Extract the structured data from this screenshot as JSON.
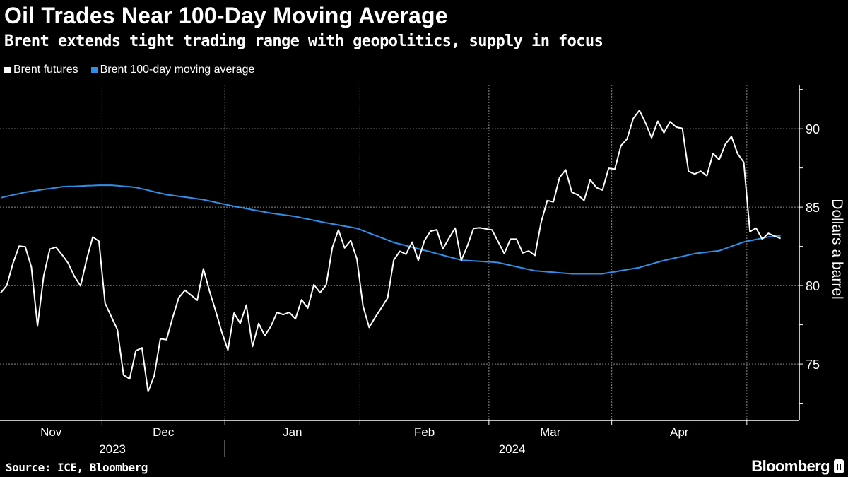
{
  "title": "Oil Trades Near 100-Day Moving Average",
  "subtitle": "Brent extends tight trading range with geopolitics, supply in focus",
  "source": "Source: ICE, Bloomberg",
  "logo_text": "Bloomberg",
  "chart_data": {
    "type": "line",
    "ylabel": "Dollars a barrel",
    "ylim": [
      71.4,
      92.8
    ],
    "yticks": [
      75,
      80,
      85,
      90
    ],
    "y_axis_position": "right",
    "grid": true,
    "legend_placement": "top-left",
    "month_labels": [
      "Nov",
      "Dec",
      "Jan",
      "Feb",
      "Mar",
      "Apr"
    ],
    "year_labels": [
      "2023",
      "2024"
    ],
    "x": [
      "2023-11-08",
      "2023-11-09",
      "2023-11-10",
      "2023-11-13",
      "2023-11-14",
      "2023-11-15",
      "2023-11-16",
      "2023-11-17",
      "2023-11-20",
      "2023-11-21",
      "2023-11-22",
      "2023-11-23",
      "2023-11-24",
      "2023-11-27",
      "2023-11-28",
      "2023-11-29",
      "2023-11-30",
      "2023-12-01",
      "2023-12-04",
      "2023-12-05",
      "2023-12-06",
      "2023-12-07",
      "2023-12-08",
      "2023-12-11",
      "2023-12-12",
      "2023-12-13",
      "2023-12-14",
      "2023-12-15",
      "2023-12-18",
      "2023-12-19",
      "2023-12-20",
      "2023-12-21",
      "2023-12-22",
      "2023-12-26",
      "2023-12-27",
      "2023-12-28",
      "2023-12-29",
      "2024-01-02",
      "2024-01-03",
      "2024-01-04",
      "2024-01-05",
      "2024-01-08",
      "2024-01-09",
      "2024-01-10",
      "2024-01-11",
      "2024-01-12",
      "2024-01-15",
      "2024-01-16",
      "2024-01-17",
      "2024-01-18",
      "2024-01-19",
      "2024-01-22",
      "2024-01-23",
      "2024-01-24",
      "2024-01-25",
      "2024-01-26",
      "2024-01-29",
      "2024-01-30",
      "2024-01-31",
      "2024-02-01",
      "2024-02-02",
      "2024-02-05",
      "2024-02-06",
      "2024-02-07",
      "2024-02-08",
      "2024-02-09",
      "2024-02-12",
      "2024-02-13",
      "2024-02-14",
      "2024-02-15",
      "2024-02-16",
      "2024-02-19",
      "2024-02-20",
      "2024-02-21",
      "2024-02-22",
      "2024-02-23",
      "2024-02-26",
      "2024-02-27",
      "2024-02-28",
      "2024-02-29",
      "2024-03-01",
      "2024-03-04",
      "2024-03-05",
      "2024-03-06",
      "2024-03-07",
      "2024-03-08",
      "2024-03-11",
      "2024-03-12",
      "2024-03-13",
      "2024-03-14",
      "2024-03-15",
      "2024-03-18",
      "2024-03-19",
      "2024-03-20",
      "2024-03-21",
      "2024-03-22",
      "2024-03-25",
      "2024-03-26",
      "2024-03-27",
      "2024-03-28",
      "2024-04-01",
      "2024-04-02",
      "2024-04-03",
      "2024-04-04",
      "2024-04-05",
      "2024-04-08",
      "2024-04-09",
      "2024-04-10",
      "2024-04-11",
      "2024-04-12",
      "2024-04-15",
      "2024-04-16",
      "2024-04-17",
      "2024-04-18",
      "2024-04-19",
      "2024-04-22",
      "2024-04-23",
      "2024-04-24",
      "2024-04-25",
      "2024-04-26",
      "2024-04-29",
      "2024-04-30",
      "2024-05-01",
      "2024-05-02",
      "2024-05-03",
      "2024-05-06",
      "2024-05-07",
      "2024-05-08"
    ],
    "series": [
      {
        "name": "Brent futures",
        "color": "#ffffff",
        "values": [
          79.54,
          80.01,
          81.43,
          82.52,
          82.47,
          81.18,
          77.42,
          80.61,
          82.32,
          82.45,
          81.96,
          81.42,
          80.58,
          79.98,
          81.68,
          83.1,
          82.83,
          78.88,
          78.03,
          77.2,
          74.3,
          74.05,
          75.84,
          76.03,
          73.24,
          74.26,
          76.61,
          76.55,
          77.95,
          79.23,
          79.7,
          79.39,
          79.07,
          81.07,
          79.65,
          78.39,
          77.04,
          75.89,
          78.25,
          77.59,
          78.76,
          76.12,
          77.59,
          76.8,
          77.41,
          78.29,
          78.15,
          78.29,
          77.88,
          79.1,
          78.56,
          80.06,
          79.55,
          80.04,
          82.43,
          83.55,
          82.4,
          82.87,
          81.71,
          78.7,
          77.33,
          77.99,
          78.59,
          79.21,
          81.63,
          82.19,
          82.0,
          82.77,
          81.6,
          82.86,
          83.47,
          83.56,
          82.34,
          83.03,
          83.67,
          81.62,
          82.53,
          83.65,
          83.68,
          83.62,
          83.55,
          82.8,
          82.04,
          82.96,
          82.96,
          82.08,
          82.21,
          81.92,
          84.03,
          85.42,
          85.34,
          86.89,
          87.38,
          85.95,
          85.78,
          85.43,
          86.75,
          86.25,
          86.09,
          87.48,
          87.42,
          88.92,
          89.35,
          90.65,
          91.17,
          90.38,
          89.42,
          90.48,
          89.74,
          90.45,
          90.1,
          90.02,
          87.29,
          87.11,
          87.29,
          87.0,
          88.42,
          88.02,
          89.01,
          89.5,
          88.4,
          87.86,
          83.44,
          83.67,
          82.96,
          83.33,
          83.16,
          83.0
        ]
      },
      {
        "name": "Brent 100-day moving average",
        "color": "#2f8fe8",
        "values": [
          85.6,
          85.69,
          85.78,
          85.86,
          85.95,
          86.01,
          86.07,
          86.13,
          86.18,
          86.24,
          86.3,
          86.32,
          86.33,
          86.35,
          86.37,
          86.38,
          86.4,
          86.4,
          86.4,
          86.37,
          86.33,
          86.3,
          86.26,
          86.17,
          86.08,
          85.98,
          85.89,
          85.8,
          85.75,
          85.69,
          85.64,
          85.59,
          85.53,
          85.48,
          85.39,
          85.31,
          85.22,
          85.14,
          85.05,
          84.98,
          84.91,
          84.83,
          84.76,
          84.69,
          84.62,
          84.57,
          84.51,
          84.46,
          84.4,
          84.32,
          84.24,
          84.16,
          84.08,
          84.0,
          83.93,
          83.86,
          83.79,
          83.72,
          83.65,
          83.5,
          83.35,
          83.2,
          83.05,
          82.9,
          82.75,
          82.65,
          82.55,
          82.45,
          82.35,
          82.25,
          82.15,
          82.04,
          81.94,
          81.83,
          81.73,
          81.62,
          81.6,
          81.57,
          81.55,
          81.52,
          81.5,
          81.47,
          81.38,
          81.29,
          81.2,
          81.12,
          81.03,
          80.94,
          80.91,
          80.88,
          80.85,
          80.81,
          80.78,
          80.75,
          80.75,
          80.75,
          80.75,
          80.75,
          80.75,
          80.82,
          80.88,
          80.95,
          81.02,
          81.08,
          81.15,
          81.26,
          81.38,
          81.49,
          81.6,
          81.69,
          81.78,
          81.86,
          81.95,
          82.04,
          82.09,
          82.13,
          82.18,
          82.22,
          82.36,
          82.5,
          82.64,
          82.78,
          82.86,
          82.94,
          83.02,
          83.1,
          83.14,
          83.18
        ]
      }
    ]
  }
}
